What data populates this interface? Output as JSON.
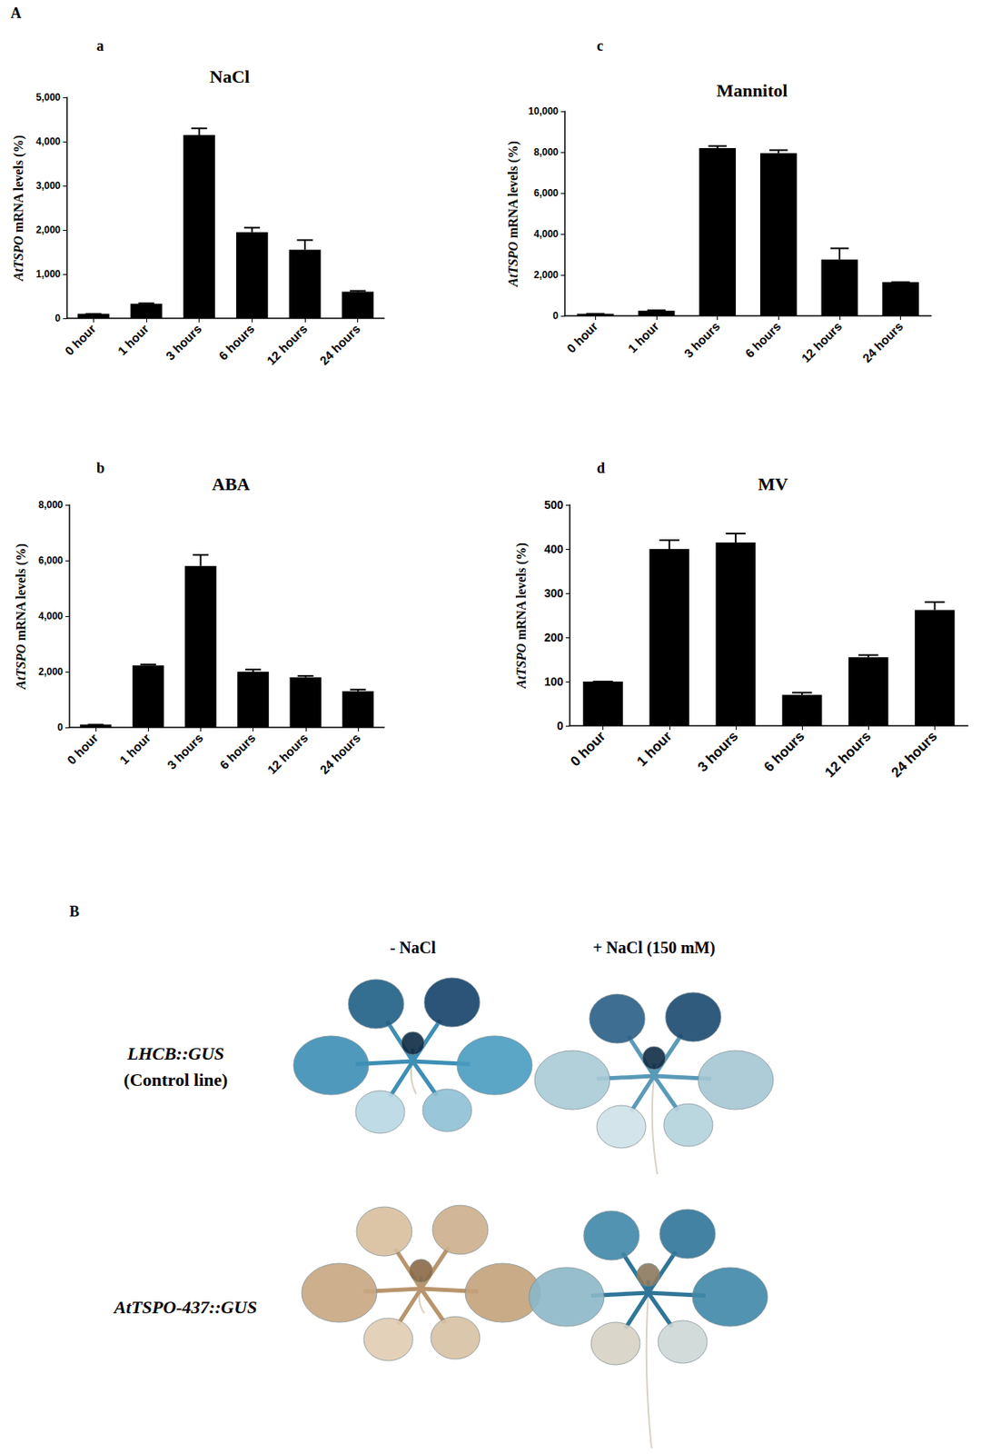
{
  "panel_label": "A",
  "chart_data": [
    {
      "type": "bar",
      "annotations": [
        "a"
      ],
      "title": "NaCl",
      "ylabel": "AtTSPO mRNA levels (%)",
      "categories": [
        "0 hour",
        "1 hour",
        "3 hours",
        "6 hours",
        "12 hours",
        "24 hours"
      ],
      "values": [
        100,
        330,
        4150,
        1950,
        1550,
        600
      ],
      "errors": [
        0,
        10,
        150,
        100,
        220,
        20
      ],
      "color": "#000000",
      "ylim": [
        0,
        5000
      ],
      "yticks": [
        0,
        1000,
        2000,
        3000,
        4000,
        5000
      ],
      "grid": false
    },
    {
      "type": "bar",
      "annotations": [
        "b"
      ],
      "title": "ABA",
      "ylabel": "AtTSPO mRNA levels (%)",
      "categories": [
        "0 hour",
        "1 hour",
        "3 hours",
        "6 hours",
        "12 hours",
        "24 hours"
      ],
      "values": [
        100,
        2230,
        5800,
        2000,
        1800,
        1300
      ],
      "errors": [
        0,
        30,
        400,
        80,
        50,
        60
      ],
      "color": "#000000",
      "ylim": [
        0,
        8000
      ],
      "yticks": [
        0,
        2000,
        4000,
        6000,
        8000
      ],
      "grid": false
    },
    {
      "type": "bar",
      "annotations": [
        "c"
      ],
      "title": "Mannitol",
      "ylabel": "AtTSPO mRNA levels (%)",
      "categories": [
        "0 hour",
        "1 hour",
        "3 hours",
        "6 hours",
        "12 hours",
        "24 hours"
      ],
      "values": [
        100,
        250,
        8200,
        7950,
        2750,
        1650
      ],
      "errors": [
        0,
        20,
        100,
        150,
        550,
        0
      ],
      "color": "#000000",
      "ylim": [
        0,
        10000
      ],
      "yticks": [
        0,
        2000,
        4000,
        6000,
        8000,
        10000
      ],
      "grid": false
    },
    {
      "type": "bar",
      "annotations": [
        "d"
      ],
      "title": "MV",
      "ylabel": "AtTSPO mRNA levels (%)",
      "categories": [
        "0 hour",
        "1 hour",
        "3 hours",
        "6 hours",
        "12 hours",
        "24 hours"
      ],
      "values": [
        100,
        400,
        415,
        70,
        155,
        262
      ],
      "errors": [
        0,
        20,
        20,
        5,
        5,
        18
      ],
      "color": "#000000",
      "ylim": [
        0,
        500
      ],
      "yticks": [
        0,
        100,
        200,
        300,
        400,
        500
      ],
      "grid": false
    }
  ],
  "panel_b": {
    "label": "B",
    "columns": [
      "- NaCl",
      "+ NaCl (150 mM)"
    ],
    "rows": [
      {
        "label": "LHCB::GUS",
        "note": "(Control line)"
      },
      {
        "label": "AtTSPO-437::GUS"
      }
    ]
  }
}
